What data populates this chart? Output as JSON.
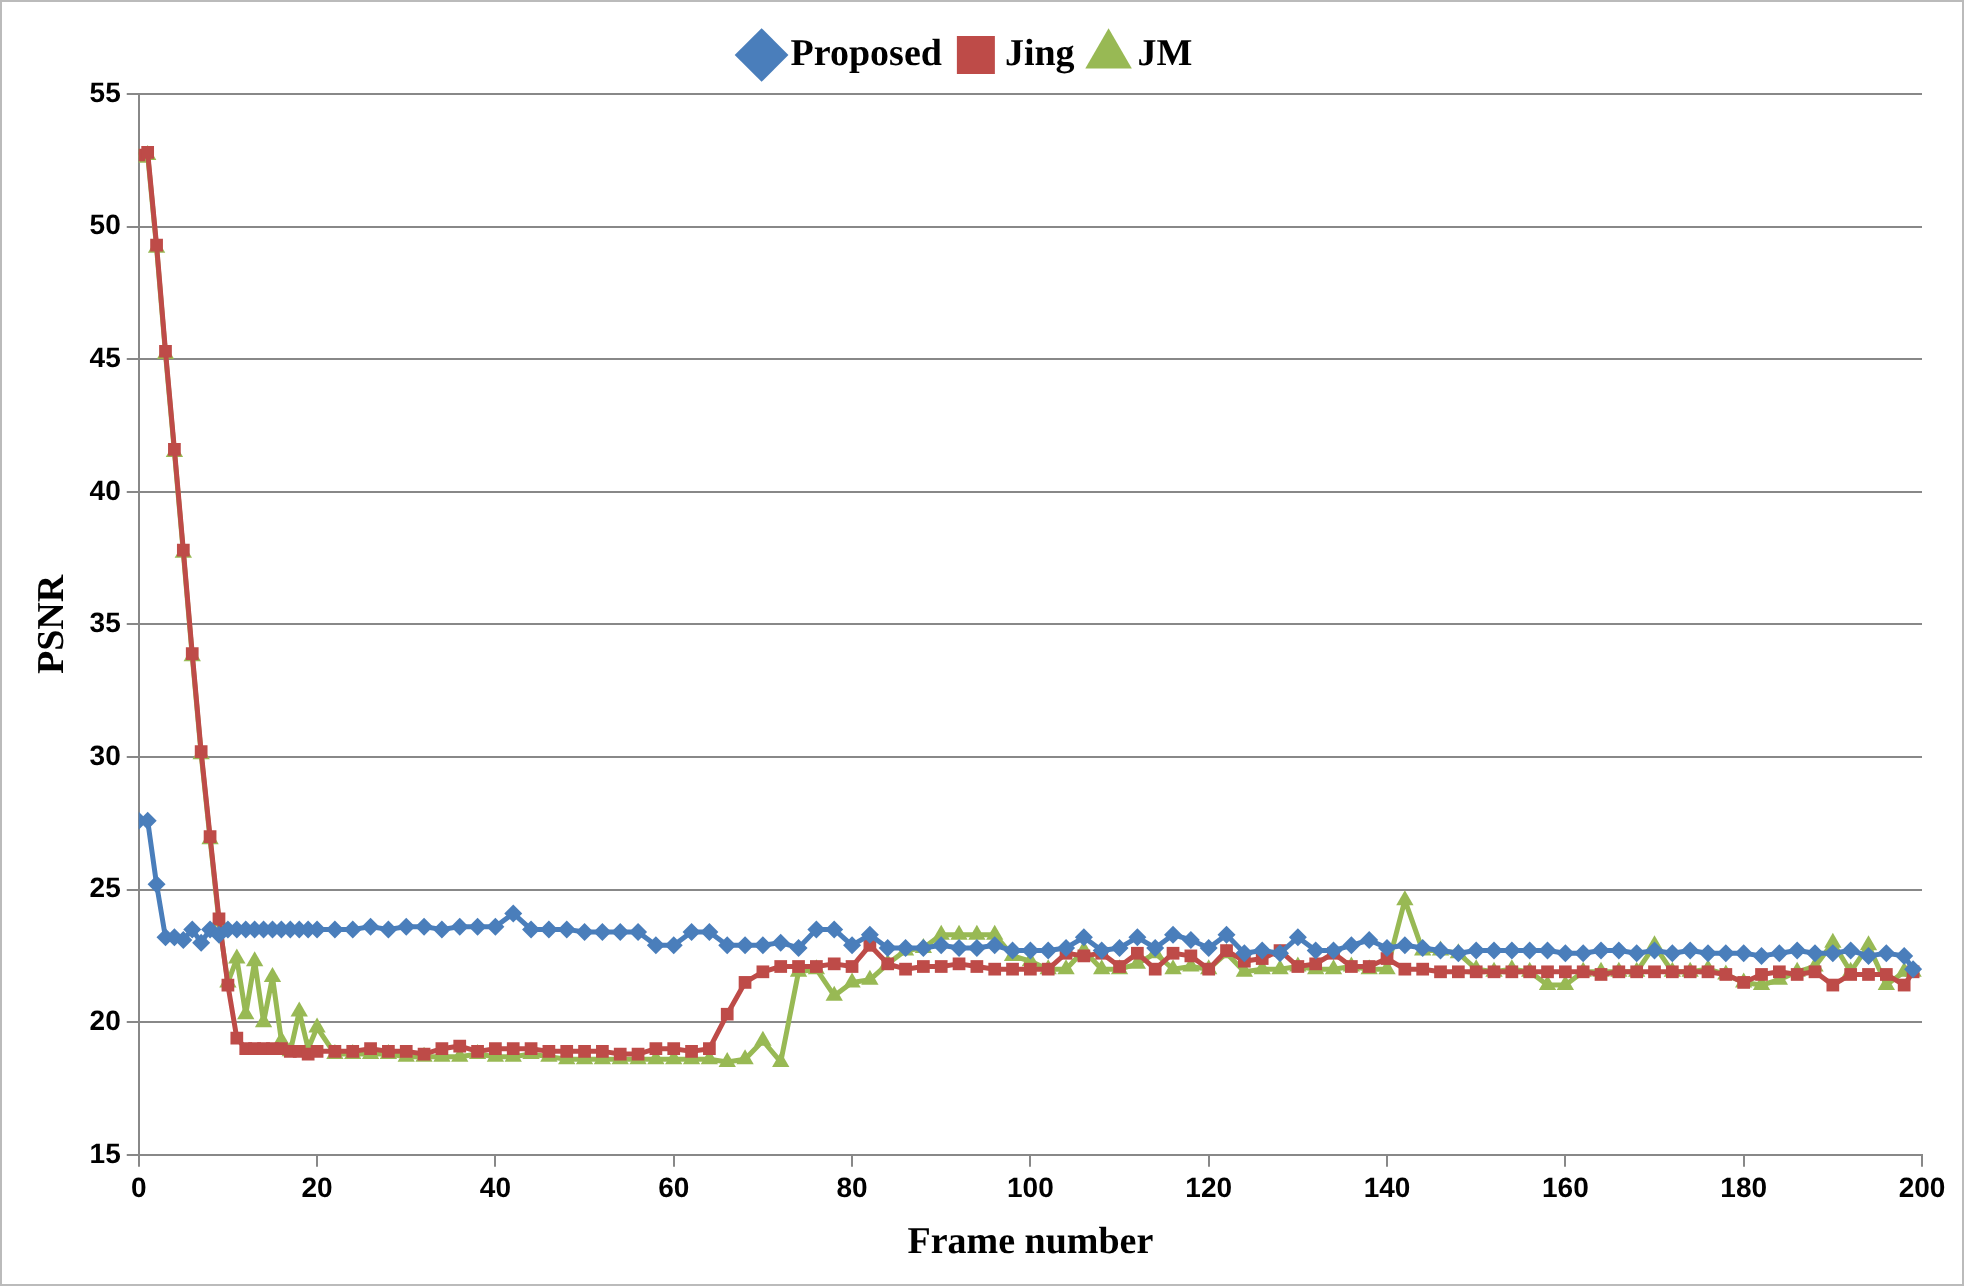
{
  "chart_data": {
    "type": "line",
    "xlabel": "Frame number",
    "ylabel": "PSNR",
    "xlim": [
      0,
      200
    ],
    "xticks": [
      0,
      20,
      40,
      60,
      80,
      100,
      120,
      140,
      160,
      180,
      200
    ],
    "ylim": [
      15,
      55
    ],
    "yticks": [
      15,
      20,
      25,
      30,
      35,
      40,
      45,
      50,
      55
    ],
    "grid": "y",
    "legend": "top",
    "x": [
      0,
      1,
      2,
      3,
      4,
      5,
      6,
      7,
      8,
      9,
      10,
      11,
      12,
      13,
      14,
      15,
      16,
      17,
      18,
      19,
      20,
      22,
      24,
      26,
      28,
      30,
      32,
      34,
      36,
      38,
      40,
      42,
      44,
      46,
      48,
      50,
      52,
      54,
      56,
      58,
      60,
      62,
      64,
      66,
      68,
      70,
      72,
      74,
      76,
      78,
      80,
      82,
      84,
      86,
      88,
      90,
      92,
      94,
      96,
      98,
      100,
      102,
      104,
      106,
      108,
      110,
      112,
      114,
      116,
      118,
      120,
      122,
      124,
      126,
      128,
      130,
      132,
      134,
      136,
      138,
      140,
      142,
      144,
      146,
      148,
      150,
      152,
      154,
      156,
      158,
      160,
      162,
      164,
      166,
      168,
      170,
      172,
      174,
      176,
      178,
      180,
      182,
      184,
      186,
      188,
      190,
      192,
      194,
      196,
      198,
      199
    ],
    "series": [
      {
        "name": "Proposed",
        "color": "#4a7ebb",
        "marker": "diamond",
        "values": [
          27.6,
          27.6,
          25.2,
          23.2,
          23.2,
          23.1,
          23.5,
          23.0,
          23.5,
          23.3,
          23.5,
          23.5,
          23.5,
          23.5,
          23.5,
          23.5,
          23.5,
          23.5,
          23.5,
          23.5,
          23.5,
          23.5,
          23.5,
          23.6,
          23.5,
          23.6,
          23.6,
          23.5,
          23.6,
          23.6,
          23.6,
          24.1,
          23.5,
          23.5,
          23.5,
          23.4,
          23.4,
          23.4,
          23.4,
          22.9,
          22.9,
          23.4,
          23.4,
          22.9,
          22.9,
          22.9,
          23.0,
          22.8,
          23.5,
          23.5,
          22.9,
          23.3,
          22.8,
          22.8,
          22.8,
          22.9,
          22.8,
          22.8,
          22.9,
          22.7,
          22.7,
          22.7,
          22.8,
          23.2,
          22.7,
          22.8,
          23.2,
          22.8,
          23.3,
          23.1,
          22.8,
          23.3,
          22.6,
          22.7,
          22.6,
          23.2,
          22.7,
          22.7,
          22.9,
          23.1,
          22.8,
          22.9,
          22.8,
          22.7,
          22.6,
          22.7,
          22.7,
          22.7,
          22.7,
          22.7,
          22.6,
          22.6,
          22.7,
          22.7,
          22.6,
          22.7,
          22.6,
          22.7,
          22.6,
          22.6,
          22.6,
          22.5,
          22.6,
          22.7,
          22.6,
          22.6,
          22.7,
          22.5,
          22.6,
          22.5,
          22.0
        ]
      },
      {
        "name": "Jing",
        "color": "#be4b48",
        "marker": "square",
        "values": [
          52.7,
          52.8,
          49.3,
          45.3,
          41.6,
          37.8,
          33.9,
          30.2,
          27.0,
          23.9,
          21.4,
          19.4,
          19.0,
          19.0,
          19.0,
          19.0,
          19.0,
          18.9,
          18.9,
          18.8,
          18.9,
          18.9,
          18.9,
          19.0,
          18.9,
          18.9,
          18.8,
          19.0,
          19.1,
          18.9,
          19.0,
          19.0,
          19.0,
          18.9,
          18.9,
          18.9,
          18.9,
          18.8,
          18.8,
          19.0,
          19.0,
          18.9,
          19.0,
          20.3,
          21.5,
          21.9,
          22.1,
          22.1,
          22.1,
          22.2,
          22.1,
          22.9,
          22.2,
          22.0,
          22.1,
          22.1,
          22.2,
          22.1,
          22.0,
          22.0,
          22.0,
          22.0,
          22.6,
          22.5,
          22.6,
          22.1,
          22.6,
          22.0,
          22.6,
          22.5,
          22.0,
          22.7,
          22.3,
          22.4,
          22.7,
          22.1,
          22.2,
          22.6,
          22.1,
          22.1,
          22.4,
          22.0,
          22.0,
          21.9,
          21.9,
          21.9,
          21.9,
          21.9,
          21.9,
          21.9,
          21.9,
          21.9,
          21.8,
          21.9,
          21.9,
          21.9,
          21.9,
          21.9,
          21.9,
          21.8,
          21.5,
          21.8,
          21.9,
          21.8,
          21.9,
          21.4,
          21.8,
          21.8,
          21.8,
          21.4,
          21.9
        ]
      },
      {
        "name": "JM",
        "color": "#98b954",
        "marker": "triangle",
        "values": [
          52.6,
          52.7,
          49.2,
          45.2,
          41.5,
          37.7,
          33.8,
          30.1,
          26.9,
          23.8,
          21.5,
          22.4,
          20.3,
          22.3,
          20.0,
          21.7,
          19.3,
          18.9,
          20.4,
          19.0,
          19.8,
          18.8,
          18.8,
          18.8,
          18.8,
          18.7,
          18.7,
          18.7,
          18.7,
          18.8,
          18.7,
          18.7,
          18.8,
          18.7,
          18.6,
          18.6,
          18.6,
          18.6,
          18.6,
          18.6,
          18.6,
          18.6,
          18.6,
          18.5,
          18.6,
          19.3,
          18.5,
          21.9,
          22.0,
          21.0,
          21.5,
          21.6,
          22.2,
          22.7,
          22.8,
          23.3,
          23.3,
          23.3,
          23.3,
          22.5,
          22.3,
          22.0,
          22.0,
          22.7,
          22.0,
          22.0,
          22.2,
          22.6,
          22.0,
          22.1,
          22.0,
          22.6,
          21.9,
          22.0,
          22.0,
          22.1,
          22.0,
          22.0,
          22.1,
          22.0,
          22.0,
          24.6,
          22.7,
          22.7,
          22.6,
          22.0,
          21.9,
          22.0,
          21.9,
          21.4,
          21.4,
          21.9,
          21.9,
          21.9,
          21.9,
          22.9,
          21.9,
          21.9,
          22.0,
          21.8,
          21.5,
          21.4,
          21.6,
          21.9,
          22.1,
          23.0,
          21.9,
          22.9,
          21.4,
          21.9,
          21.9
        ]
      }
    ]
  }
}
